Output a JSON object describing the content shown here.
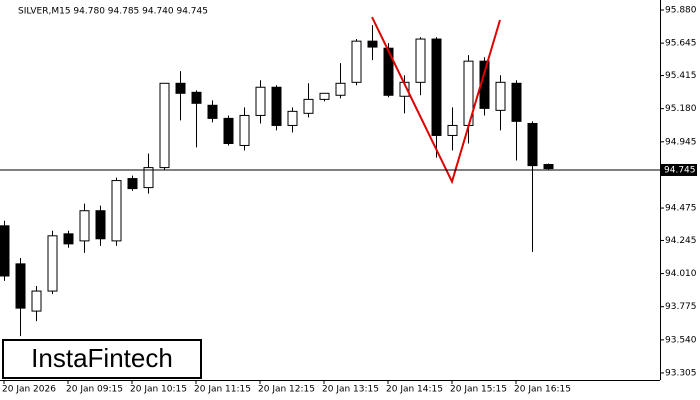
{
  "chart_data": {
    "type": "candlestick",
    "title": "SILVER,M15  94.780 94.785 94.740 94.745",
    "categories": [
      "20 Jan 2026",
      null,
      null,
      null,
      "20 Jan 09:15",
      null,
      null,
      null,
      "20 Jan 10:15",
      null,
      null,
      null,
      "20 Jan 11:15",
      null,
      null,
      null,
      "20 Jan 12:15",
      null,
      null,
      null,
      "20 Jan 13:15",
      null,
      null,
      null,
      "20 Jan 14:15",
      null,
      null,
      null,
      "20 Jan 15:15",
      null,
      null,
      null,
      "20 Jan 16:15",
      null,
      null
    ],
    "open": [
      94.349,
      94.079,
      93.744,
      93.886,
      94.292,
      94.242,
      94.456,
      94.242,
      94.684,
      94.62,
      94.762,
      95.36,
      95.296,
      95.204,
      95.111,
      94.919,
      95.132,
      95.332,
      95.061,
      95.147,
      95.246,
      95.275,
      95.367,
      95.659,
      95.609,
      95.268,
      95.367,
      95.674,
      94.99,
      95.061,
      95.517,
      95.168,
      95.36,
      95.075,
      94.784
    ],
    "high": [
      94.385,
      94.121,
      93.922,
      94.314,
      94.314,
      94.506,
      94.492,
      94.691,
      94.705,
      94.862,
      95.36,
      95.446,
      95.31,
      95.239,
      95.132,
      95.189,
      95.382,
      95.346,
      95.189,
      95.36,
      95.289,
      95.503,
      95.674,
      95.773,
      95.645,
      95.417,
      95.688,
      95.688,
      95.189,
      95.56,
      95.545,
      95.417,
      95.382,
      95.09,
      94.791
    ],
    "low": [
      93.958,
      93.566,
      93.673,
      93.865,
      94.193,
      94.157,
      94.207,
      94.207,
      94.598,
      94.577,
      94.741,
      95.097,
      94.905,
      95.083,
      94.919,
      94.883,
      95.075,
      95.026,
      95.011,
      95.118,
      95.232,
      95.253,
      95.346,
      95.524,
      95.261,
      95.147,
      95.275,
      94.833,
      94.883,
      94.933,
      95.132,
      95.026,
      94.812,
      94.164,
      94.748
    ],
    "close": [
      93.993,
      93.765,
      93.886,
      94.278,
      94.221,
      94.456,
      94.257,
      94.67,
      94.613,
      94.762,
      95.36,
      95.289,
      95.218,
      95.111,
      94.933,
      95.132,
      95.332,
      95.061,
      95.161,
      95.246,
      95.289,
      95.36,
      95.659,
      95.617,
      95.275,
      95.367,
      95.674,
      94.99,
      95.061,
      95.517,
      95.182,
      95.367,
      95.09,
      94.776,
      94.755
    ],
    "pattern": {
      "x": [
        23,
        28,
        31
      ],
      "values": [
        95.83,
        94.662,
        95.809
      ],
      "color": "#e00000"
    },
    "current_price": 94.745,
    "ylim": [
      93.255,
      95.951
    ],
    "yticks": [
      {
        "value": 95.88,
        "label": "95.880"
      },
      95.645,
      95.415,
      {
        "value": 95.18,
        "label": "95.180"
      },
      94.945,
      94.475,
      94.245,
      {
        "value": 94.01,
        "label": "94.010"
      },
      93.775,
      {
        "value": 93.54,
        "label": "93.540"
      },
      93.305
    ],
    "watermark": "InstaFintech"
  }
}
